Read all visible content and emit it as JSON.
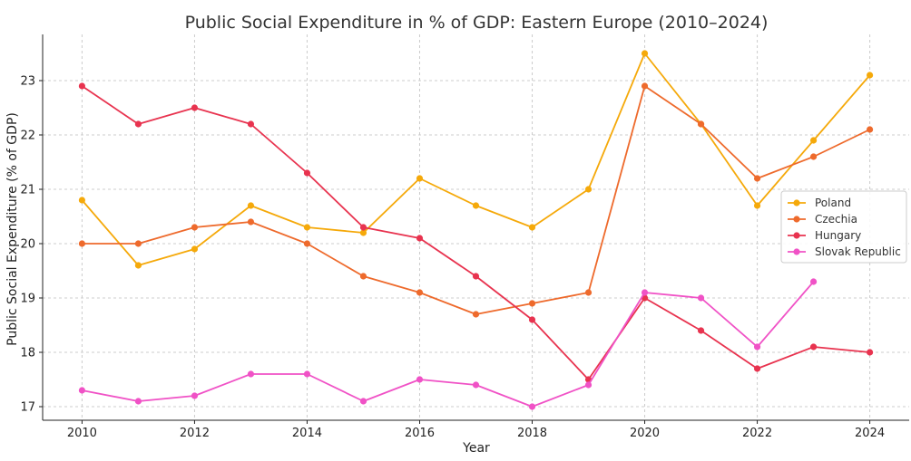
{
  "chart_data": {
    "type": "line",
    "title": "Public Social Expenditure in % of GDP: Eastern Europe (2010–2024)",
    "xlabel": "Year",
    "ylabel": "Public Social Expenditure (% of GDP)",
    "xlim": [
      2009.3,
      2024.7
    ],
    "ylim": [
      16.75,
      23.85
    ],
    "xticks": [
      2010,
      2012,
      2014,
      2016,
      2018,
      2020,
      2022,
      2024
    ],
    "yticks": [
      17,
      18,
      19,
      20,
      21,
      22,
      23
    ],
    "grid": true,
    "legend_position": "right",
    "x": [
      2010,
      2011,
      2012,
      2013,
      2014,
      2015,
      2016,
      2017,
      2018,
      2019,
      2020,
      2021,
      2022,
      2023,
      2024
    ],
    "series": [
      {
        "name": "Poland",
        "color": "#f5a90a",
        "values": [
          20.8,
          19.6,
          19.9,
          20.7,
          20.3,
          20.2,
          21.2,
          20.7,
          20.3,
          21.0,
          23.5,
          22.2,
          20.7,
          21.9,
          23.1
        ]
      },
      {
        "name": "Czechia",
        "color": "#ee6a2c",
        "values": [
          20.0,
          20.0,
          20.3,
          20.4,
          20.0,
          19.4,
          19.1,
          18.7,
          18.9,
          19.1,
          22.9,
          22.2,
          21.2,
          21.6,
          22.1
        ]
      },
      {
        "name": "Hungary",
        "color": "#e8334f",
        "values": [
          22.9,
          22.2,
          22.5,
          22.2,
          21.3,
          20.3,
          20.1,
          19.4,
          18.6,
          17.5,
          19.0,
          18.4,
          17.7,
          18.1,
          18.0
        ]
      },
      {
        "name": "Slovak Republic",
        "color": "#f052c6",
        "values": [
          17.3,
          17.1,
          17.2,
          17.6,
          17.6,
          17.1,
          17.5,
          17.4,
          17.0,
          17.4,
          19.1,
          19.0,
          18.1,
          19.3,
          null
        ]
      }
    ]
  }
}
